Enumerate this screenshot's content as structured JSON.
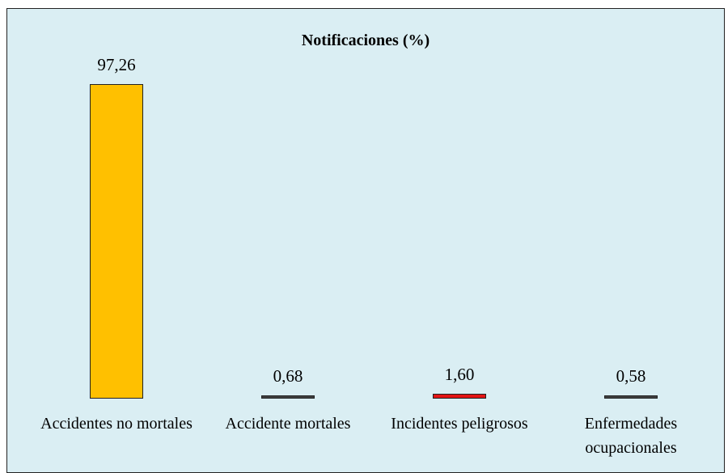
{
  "chart_data": {
    "type": "bar",
    "title": "Notificaciones (%)",
    "categories": [
      "Accidentes no mortales",
      "Accidente mortales",
      "Incidentes peligrosos",
      "Enfermedades ocupacionales"
    ],
    "values": [
      97.26,
      0.68,
      1.6,
      0.58
    ],
    "value_labels": [
      "97,26",
      "0,68",
      "1,60",
      "0,58"
    ],
    "colors": [
      "#ffc000",
      "#404040",
      "#e31414",
      "#404040"
    ]
  }
}
